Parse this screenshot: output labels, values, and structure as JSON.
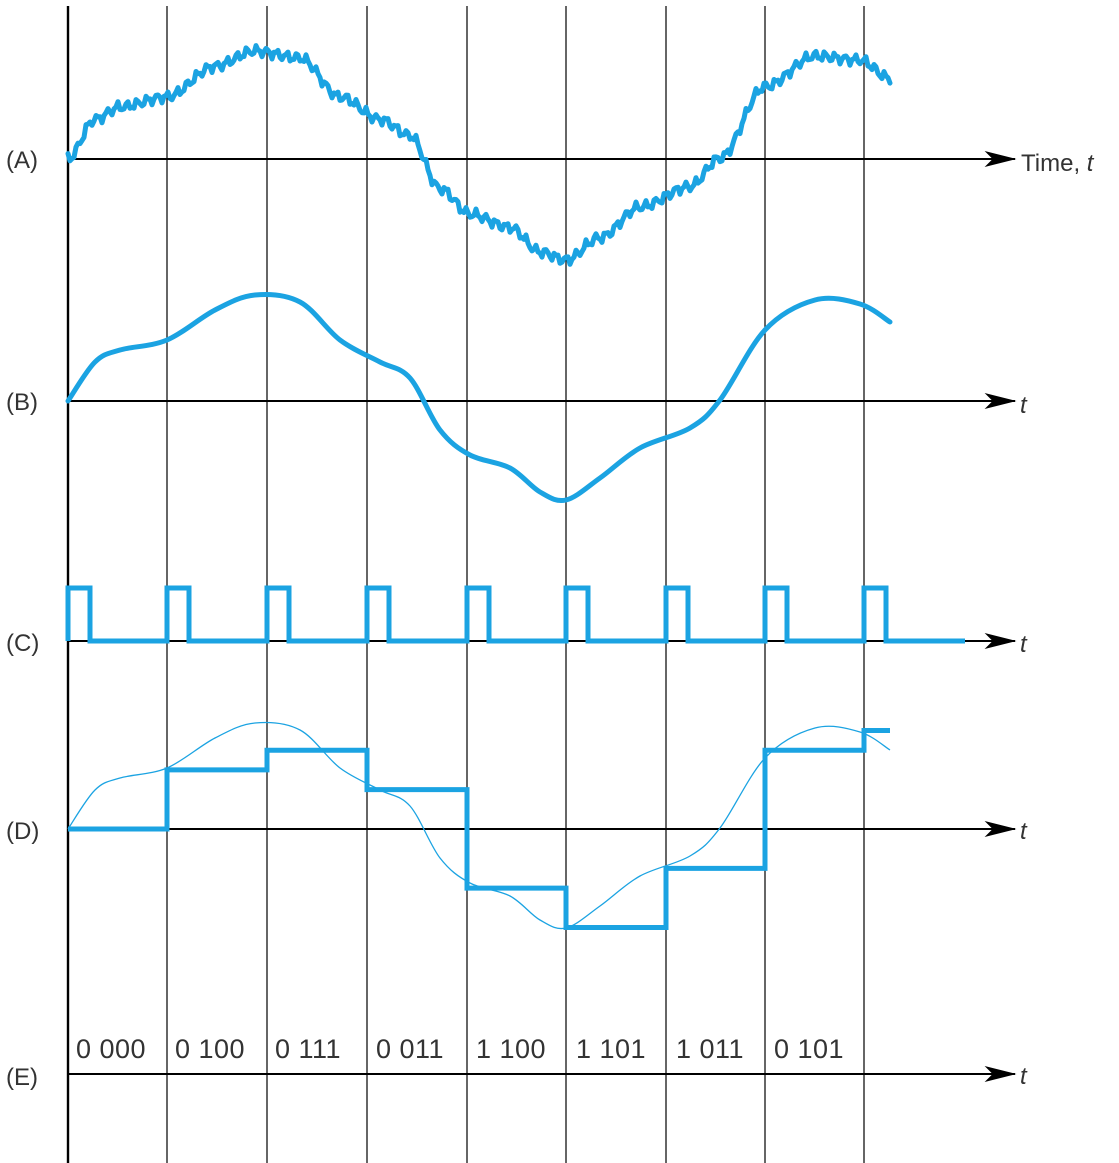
{
  "colors": {
    "signal": "#1ba3e2",
    "axis": "#000000",
    "text": "#333333"
  },
  "rows": [
    {
      "id": "A",
      "label": "(A)",
      "axis_label": "Time,",
      "axis_var": "t"
    },
    {
      "id": "B",
      "label": "(B)",
      "axis_label": "",
      "axis_var": "t"
    },
    {
      "id": "C",
      "label": "(C)",
      "axis_label": "",
      "axis_var": "t"
    },
    {
      "id": "D",
      "label": "(D)",
      "axis_label": "",
      "axis_var": "t"
    },
    {
      "id": "E",
      "label": "(E)",
      "axis_label": "",
      "axis_var": "t"
    }
  ],
  "codes": [
    "0 000",
    "0 100",
    "0 111",
    "0 011",
    "1 100",
    "1 101",
    "1 011",
    "0 101"
  ],
  "quantized_levels": [
    0,
    3,
    4,
    2,
    -3,
    -5,
    -2,
    4,
    5
  ]
}
